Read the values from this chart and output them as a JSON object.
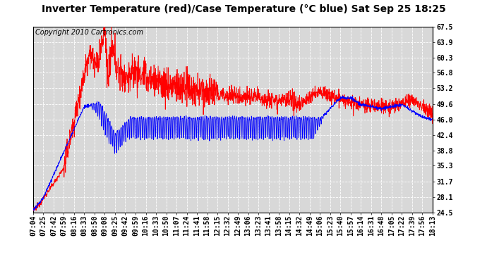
{
  "title": "Inverter Temperature (red)/Case Temperature (°C blue) Sat Sep 25 18:25",
  "copyright": "Copyright 2010 Cartronics.com",
  "yticks": [
    24.5,
    28.1,
    31.7,
    35.3,
    38.8,
    42.4,
    46.0,
    49.6,
    53.2,
    56.8,
    60.3,
    63.9,
    67.5
  ],
  "xtick_labels": [
    "07:04",
    "07:25",
    "07:42",
    "07:59",
    "08:16",
    "08:33",
    "08:50",
    "09:08",
    "09:25",
    "09:42",
    "09:59",
    "10:16",
    "10:33",
    "10:50",
    "11:07",
    "11:24",
    "11:41",
    "11:58",
    "12:15",
    "12:32",
    "12:49",
    "13:06",
    "13:23",
    "13:41",
    "13:58",
    "14:15",
    "14:32",
    "14:49",
    "15:06",
    "15:23",
    "15:40",
    "15:57",
    "16:14",
    "16:31",
    "16:48",
    "17:05",
    "17:22",
    "17:39",
    "17:56",
    "18:13"
  ],
  "bg_color": "#ffffff",
  "plot_bg_color": "#d8d8d8",
  "grid_color": "#ffffff",
  "red_color": "#ff0000",
  "blue_color": "#0000ff",
  "title_fontsize": 10,
  "copyright_fontsize": 7,
  "tick_fontsize": 7,
  "ymin": 24.5,
  "ymax": 67.5
}
